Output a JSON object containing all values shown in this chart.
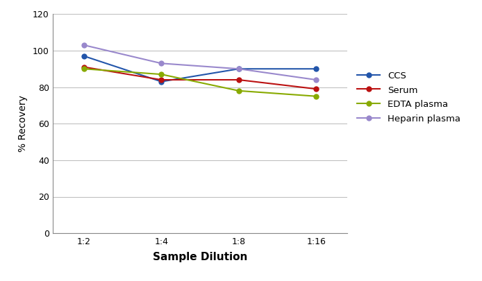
{
  "x_labels": [
    "1:2",
    "1:4",
    "1:8",
    "1:16"
  ],
  "x_positions": [
    0,
    1,
    2,
    3
  ],
  "series": [
    {
      "label": "CCS",
      "color": "#2255aa",
      "values": [
        97,
        83,
        90,
        90
      ]
    },
    {
      "label": "Serum",
      "color": "#bb1111",
      "values": [
        91,
        84,
        84,
        79
      ]
    },
    {
      "label": "EDTA plasma",
      "color": "#88aa00",
      "values": [
        90,
        87,
        78,
        75
      ]
    },
    {
      "label": "Heparin plasma",
      "color": "#9988cc",
      "values": [
        103,
        93,
        90,
        84
      ]
    }
  ],
  "ylabel": "% Recovery",
  "xlabel": "Sample Dilution",
  "ylim": [
    0,
    120
  ],
  "yticks": [
    0,
    20,
    40,
    60,
    80,
    100,
    120
  ],
  "background_color": "#ffffff",
  "grid_color": "#c0c0c0",
  "marker": "o",
  "marker_size": 6,
  "line_width": 1.5,
  "tick_fontsize": 9,
  "ylabel_fontsize": 10,
  "xlabel_fontsize": 11,
  "legend_fontsize": 9.5
}
